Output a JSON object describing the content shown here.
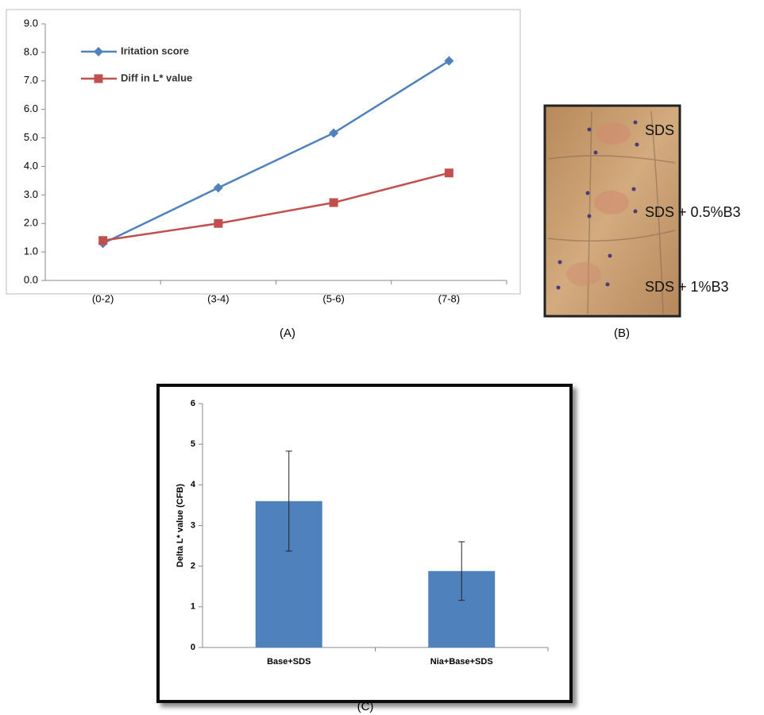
{
  "chart_data": [
    {
      "type": "line",
      "caption": "(A)",
      "categories": [
        "(0-2)",
        "(3-4)",
        "(5-6)",
        "(7-8)"
      ],
      "series": [
        {
          "name": "Iritation score",
          "color": "#4f81bd",
          "marker": "diamond",
          "values": [
            1.3,
            3.25,
            5.17,
            7.7
          ]
        },
        {
          "name": "Diff in L* value",
          "color": "#c0504d",
          "marker": "square",
          "values": [
            1.4,
            2.0,
            2.73,
            3.77
          ]
        }
      ],
      "ylim": [
        0,
        9
      ],
      "yticks": [
        {
          "value": 0,
          "label": "0.0"
        },
        {
          "value": 1,
          "label": "1.0"
        },
        {
          "value": 2,
          "label": "2.0"
        },
        {
          "value": 3,
          "label": "3.0"
        },
        {
          "value": 4,
          "label": "4.0"
        },
        {
          "value": 5,
          "label": "5.0"
        },
        {
          "value": 6,
          "label": "6.0"
        },
        {
          "value": 7,
          "label": "7.0"
        },
        {
          "value": 8,
          "label": "8.0"
        },
        {
          "value": 9,
          "label": "9.0"
        }
      ],
      "grid": false,
      "legend": "top-left"
    },
    {
      "type": "bar",
      "caption": "(C)",
      "ylabel": "Delta L* value (CFB)",
      "categories": [
        "Base+SDS",
        "Nia+Base+SDS"
      ],
      "values": [
        3.6,
        1.88
      ],
      "errors": [
        1.23,
        0.72
      ],
      "color": "#4f81bd",
      "ylim": [
        0,
        6
      ],
      "yticks": [
        0,
        1,
        2,
        3,
        4,
        5,
        6
      ],
      "grid": false
    }
  ],
  "photo": {
    "caption": "(B)",
    "labels": [
      "SDS",
      "SDS + 0.5%B3",
      "SDS + 1%B3"
    ]
  }
}
